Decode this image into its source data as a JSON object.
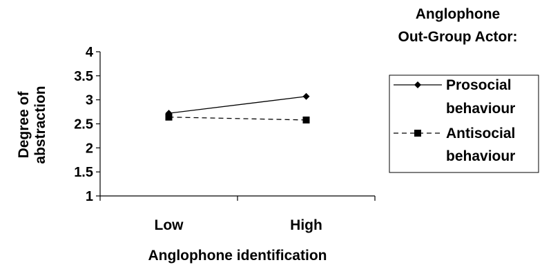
{
  "chart_data": {
    "type": "line",
    "categories": [
      "Low",
      "High"
    ],
    "series": [
      {
        "name": "Prosocial behaviour",
        "name_lines": [
          "Prosocial",
          "behaviour"
        ],
        "values": [
          2.72,
          3.07
        ],
        "marker": "diamond",
        "line": "solid"
      },
      {
        "name": "Antisocial behaviour",
        "name_lines": [
          "Antisocial",
          "behaviour"
        ],
        "values": [
          2.64,
          2.58
        ],
        "marker": "square",
        "line": "dashed"
      }
    ],
    "ylim": [
      1,
      4
    ],
    "yticks": [
      "1",
      "1.5",
      "2",
      "2.5",
      "3",
      "3.5",
      "4"
    ],
    "ylabel_lines": [
      "Degree of",
      "abstraction"
    ],
    "xlabel": "Anglophone identification",
    "legend_title_lines": [
      "Anglophone",
      "Out-Group Actor:"
    ],
    "legend_position": "right",
    "grid": false
  }
}
